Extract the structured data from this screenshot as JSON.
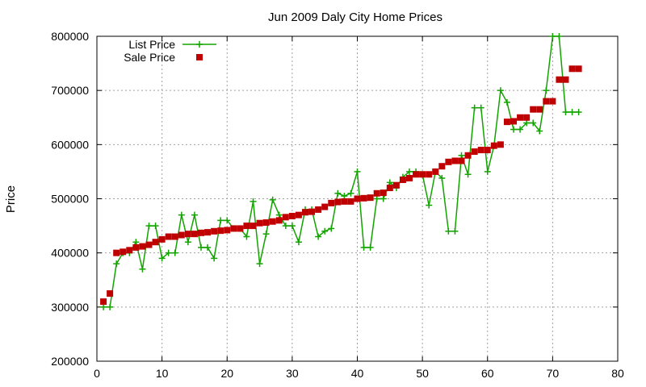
{
  "chart_data": {
    "type": "line",
    "title": "Jun 2009 Daly City Home Prices",
    "xlabel": "",
    "ylabel": "Price",
    "xlim": [
      0,
      80
    ],
    "ylim": [
      200000,
      800000
    ],
    "xticks": [
      0,
      10,
      20,
      30,
      40,
      50,
      60,
      70,
      80
    ],
    "yticks": [
      200000,
      300000,
      400000,
      500000,
      600000,
      700000,
      800000
    ],
    "grid": true,
    "legend_position": "top-left",
    "series": [
      {
        "name": "List Price",
        "style": "line-plus",
        "color": "#13a300",
        "x": [
          1,
          2,
          3,
          4,
          5,
          6,
          7,
          8,
          9,
          10,
          11,
          12,
          13,
          14,
          15,
          16,
          17,
          18,
          19,
          20,
          21,
          22,
          23,
          24,
          25,
          26,
          27,
          28,
          29,
          30,
          31,
          32,
          33,
          34,
          35,
          36,
          37,
          38,
          39,
          40,
          41,
          42,
          43,
          44,
          45,
          46,
          47,
          48,
          49,
          50,
          51,
          52,
          53,
          54,
          55,
          56,
          57,
          58,
          59,
          60,
          61,
          62,
          63,
          64,
          65,
          66,
          67,
          68,
          69,
          70,
          71,
          72,
          73,
          74
        ],
        "y": [
          300000,
          300000,
          380000,
          400000,
          400000,
          420000,
          370000,
          450000,
          450000,
          390000,
          400000,
          400000,
          470000,
          420000,
          470000,
          410000,
          410000,
          390000,
          460000,
          460000,
          445000,
          445000,
          430000,
          495000,
          380000,
          435000,
          498000,
          470000,
          450000,
          450000,
          420000,
          480000,
          480000,
          430000,
          440000,
          445000,
          510000,
          505000,
          510000,
          550000,
          410000,
          410000,
          500000,
          500000,
          530000,
          520000,
          540000,
          550000,
          550000,
          545000,
          488000,
          550000,
          538000,
          440000,
          440000,
          580000,
          545000,
          668000,
          668000,
          550000,
          598000,
          700000,
          678000,
          628000,
          628000,
          640000,
          640000,
          625000,
          700000,
          800000,
          800000,
          660000,
          660000,
          660000
        ]
      },
      {
        "name": "Sale Price",
        "style": "squares",
        "color": "#c00000",
        "x": [
          1,
          2,
          3,
          4,
          5,
          6,
          7,
          8,
          9,
          10,
          11,
          12,
          13,
          14,
          15,
          16,
          17,
          18,
          19,
          20,
          21,
          22,
          23,
          24,
          25,
          26,
          27,
          28,
          29,
          30,
          31,
          32,
          33,
          34,
          35,
          36,
          37,
          38,
          39,
          40,
          41,
          42,
          43,
          44,
          45,
          46,
          47,
          48,
          49,
          50,
          51,
          52,
          53,
          54,
          55,
          56,
          57,
          58,
          59,
          60,
          61,
          62,
          63,
          64,
          65,
          66,
          67,
          68,
          69,
          70,
          71,
          72,
          73,
          74
        ],
        "y": [
          310000,
          325000,
          400000,
          402000,
          405000,
          410000,
          412000,
          415000,
          420000,
          425000,
          430000,
          430000,
          433000,
          435000,
          435000,
          437000,
          438000,
          440000,
          441000,
          442000,
          445000,
          445000,
          450000,
          450000,
          455000,
          456000,
          458000,
          460000,
          466000,
          468000,
          470000,
          475000,
          476000,
          480000,
          485000,
          492000,
          494000,
          495000,
          495000,
          500000,
          501000,
          502000,
          510000,
          511000,
          520000,
          525000,
          535000,
          538000,
          545000,
          545000,
          545000,
          550000,
          560000,
          568000,
          570000,
          570000,
          580000,
          587000,
          590000,
          590000,
          598000,
          600000,
          642000,
          643000,
          650000,
          650000,
          665000,
          665000,
          680000,
          680000,
          720000,
          720000,
          740000,
          740000
        ]
      }
    ]
  }
}
